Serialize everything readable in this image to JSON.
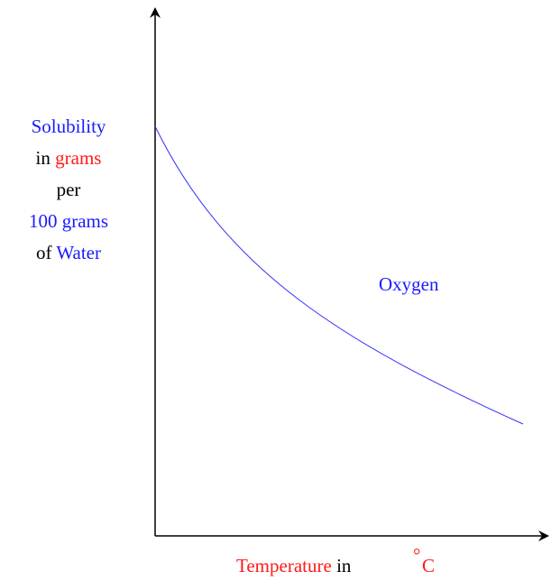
{
  "y_axis_label": {
    "line1": "Solubility",
    "line2_a": "in",
    "line2_b": "grams",
    "line3": "per",
    "line4": "100 grams",
    "line5_a": "of",
    "line5_b": "Water"
  },
  "curve_label": "Oxygen",
  "x_axis_label": {
    "part1": "Temperature",
    "part2": "in",
    "degree": "°",
    "unit": "C"
  }
}
